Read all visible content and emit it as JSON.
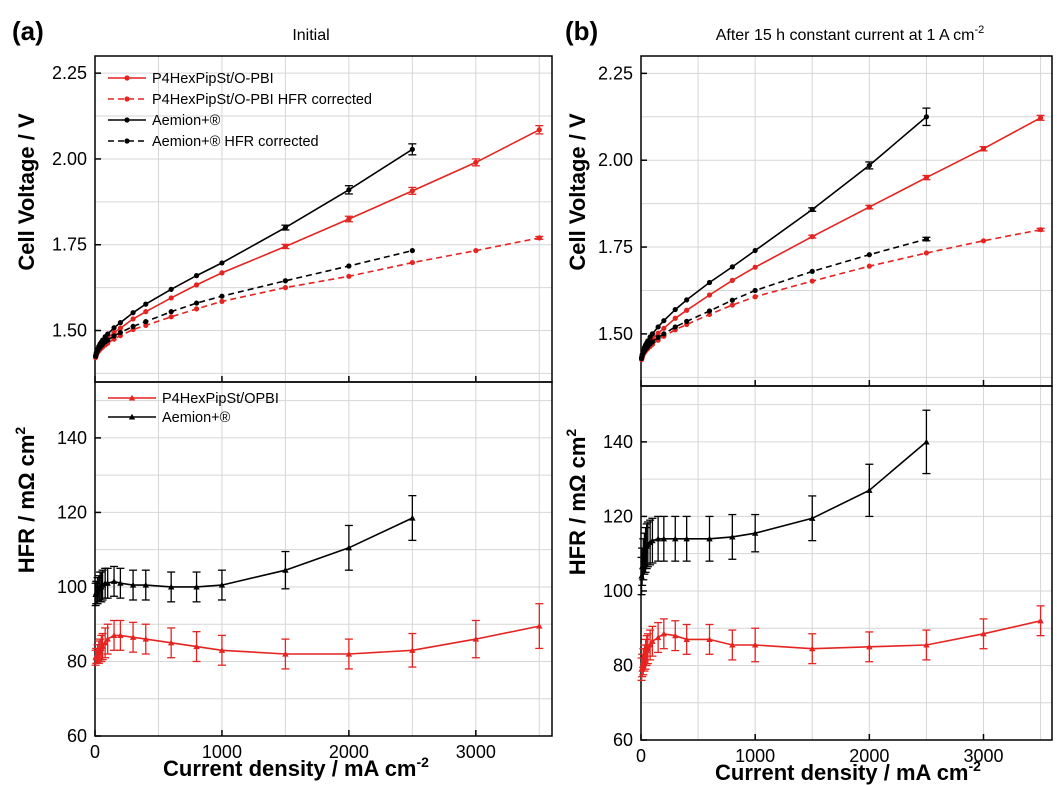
{
  "figure": {
    "panels": [
      {
        "letter": "(a)",
        "title": "Initial",
        "title_sup": ""
      },
      {
        "letter": "(b)",
        "title": "After 15 h constant current at 1 A cm",
        "title_sup": "-2"
      }
    ],
    "xlabel": "Current density / mA cm",
    "xlabel_sup": "-2",
    "voltage_ylabel": "Cell Voltage / V",
    "hfr_ylabel": "HFR / mΩ cm",
    "hfr_ylabel_sup": "2"
  },
  "chart_data": [
    {
      "type": "line",
      "panel": "(a)",
      "title": "Initial",
      "xlabel": "Current density / mA cm-2",
      "ylabel": "Cell Voltage / V",
      "xlim": [
        0,
        3600
      ],
      "ylim": [
        1.35,
        2.3
      ],
      "xticks": [
        "0",
        "1000",
        "2000",
        "3000"
      ],
      "yticks": [
        "1.50",
        "1.75",
        "2.00",
        "2.25"
      ],
      "grid": true,
      "legend_position": "top-left",
      "series": [
        {
          "name": "P4HexPipSt/O-PBI",
          "color": "#e52421",
          "dashed": false,
          "marker": "circle",
          "x": [
            5,
            10,
            20,
            30,
            40,
            50,
            60,
            80,
            100,
            150,
            200,
            300,
            400,
            600,
            800,
            1000,
            1500,
            2000,
            2500,
            3000,
            3500
          ],
          "y": [
            1.422,
            1.43,
            1.44,
            1.447,
            1.452,
            1.457,
            1.462,
            1.471,
            1.478,
            1.494,
            1.507,
            1.534,
            1.555,
            1.595,
            1.633,
            1.668,
            1.745,
            1.825,
            1.907,
            1.99,
            2.085
          ],
          "err": [
            0,
            0,
            0,
            0,
            0,
            0,
            0,
            0,
            0,
            0,
            0,
            0,
            0,
            0,
            0,
            0,
            0.006,
            0.008,
            0.01,
            0.01,
            0.012
          ]
        },
        {
          "name": "P4HexPipSt/O-PBI HFR corrected",
          "color": "#e52421",
          "dashed": true,
          "marker": "circle",
          "x": [
            5,
            10,
            20,
            30,
            40,
            50,
            60,
            80,
            100,
            150,
            200,
            300,
            400,
            600,
            800,
            1000,
            1500,
            2000,
            2500,
            3000,
            3500
          ],
          "y": [
            1.421,
            1.428,
            1.436,
            1.441,
            1.445,
            1.449,
            1.452,
            1.458,
            1.463,
            1.475,
            1.485,
            1.503,
            1.515,
            1.54,
            1.563,
            1.585,
            1.625,
            1.658,
            1.698,
            1.733,
            1.77
          ],
          "err": [
            0,
            0,
            0,
            0,
            0,
            0,
            0,
            0,
            0,
            0,
            0,
            0,
            0,
            0,
            0,
            0,
            0,
            0,
            0,
            0,
            0.004
          ]
        },
        {
          "name": "Aemion+®",
          "color": "#000000",
          "dashed": false,
          "marker": "circle",
          "x": [
            5,
            10,
            20,
            30,
            40,
            50,
            60,
            80,
            100,
            150,
            200,
            300,
            400,
            600,
            800,
            1000,
            1500,
            2000,
            2500
          ],
          "y": [
            1.427,
            1.435,
            1.446,
            1.454,
            1.461,
            1.466,
            1.472,
            1.482,
            1.49,
            1.508,
            1.523,
            1.552,
            1.577,
            1.62,
            1.66,
            1.697,
            1.8,
            1.91,
            2.028
          ],
          "err": [
            0,
            0,
            0,
            0,
            0,
            0,
            0,
            0,
            0,
            0,
            0,
            0,
            0,
            0,
            0,
            0,
            0.007,
            0.012,
            0.016
          ]
        },
        {
          "name": "Aemion+®   HFR corrected",
          "color": "#000000",
          "dashed": true,
          "marker": "circle",
          "x": [
            5,
            10,
            20,
            30,
            40,
            50,
            60,
            80,
            100,
            150,
            200,
            300,
            400,
            600,
            800,
            1000,
            1500,
            2000,
            2500
          ],
          "y": [
            1.425,
            1.432,
            1.441,
            1.447,
            1.452,
            1.456,
            1.46,
            1.467,
            1.472,
            1.484,
            1.494,
            1.512,
            1.526,
            1.555,
            1.58,
            1.6,
            1.645,
            1.688,
            1.733
          ],
          "err": [
            0,
            0,
            0,
            0,
            0,
            0,
            0,
            0,
            0,
            0,
            0,
            0,
            0,
            0,
            0,
            0,
            0,
            0,
            0
          ]
        }
      ]
    },
    {
      "type": "line",
      "panel": "(a)",
      "xlabel": "Current density / mA cm-2",
      "ylabel": "HFR / mΩ cm2",
      "xlim": [
        0,
        3600
      ],
      "ylim": [
        60,
        155
      ],
      "xticks": [
        "0",
        "1000",
        "2000",
        "3000"
      ],
      "yticks": [
        "60",
        "80",
        "100",
        "120",
        "140"
      ],
      "grid": true,
      "legend_position": "top-left",
      "series": [
        {
          "name": "P4HexPipSt/OPBI",
          "color": "#e52421",
          "marker": "triangle",
          "x": [
            5,
            10,
            20,
            30,
            40,
            50,
            60,
            80,
            100,
            150,
            200,
            300,
            400,
            600,
            800,
            1000,
            1500,
            2000,
            2500,
            3000,
            3500
          ],
          "y": [
            81,
            81.5,
            82,
            82.5,
            83,
            83.5,
            84,
            85,
            86,
            87,
            87,
            86.5,
            86,
            85,
            84,
            83,
            82,
            82,
            83,
            86,
            89.5
          ],
          "err": [
            2,
            2,
            2.5,
            3,
            3,
            3.5,
            3.5,
            4,
            4,
            4,
            4,
            4,
            4,
            4,
            4,
            4,
            4,
            4,
            4.5,
            5,
            6
          ]
        },
        {
          "name": "Aemion+®",
          "color": "#000000",
          "marker": "triangle",
          "x": [
            5,
            10,
            20,
            30,
            40,
            50,
            60,
            80,
            100,
            150,
            200,
            300,
            400,
            600,
            800,
            1000,
            1500,
            2000,
            2500
          ],
          "y": [
            98,
            98.5,
            99,
            99.5,
            100,
            100,
            100.5,
            101,
            101,
            101.5,
            101,
            100.5,
            100.5,
            100,
            100,
            100.5,
            104.5,
            110.5,
            118.5
          ],
          "err": [
            3,
            3,
            3.5,
            3.5,
            4,
            4,
            4,
            4,
            4,
            4,
            4,
            4,
            4,
            4,
            4,
            4,
            5,
            6,
            6
          ]
        }
      ]
    },
    {
      "type": "line",
      "panel": "(b)",
      "title": "After 15 h constant current at 1 A cm-2",
      "xlabel": "Current density / mA cm-2",
      "ylabel": "Cell Voltage / V",
      "xlim": [
        0,
        3600
      ],
      "ylim": [
        1.35,
        2.3
      ],
      "xticks": [
        "0",
        "1000",
        "2000",
        "3000"
      ],
      "yticks": [
        "1.50",
        "1.75",
        "2.00",
        "2.25"
      ],
      "grid": true,
      "series": [
        {
          "name": "P4HexPipSt/O-PBI",
          "color": "#e52421",
          "dashed": false,
          "marker": "circle",
          "x": [
            5,
            10,
            20,
            30,
            40,
            50,
            60,
            80,
            100,
            150,
            200,
            300,
            400,
            600,
            800,
            1000,
            1500,
            2000,
            2500,
            3000,
            3500
          ],
          "y": [
            1.428,
            1.435,
            1.446,
            1.454,
            1.46,
            1.465,
            1.47,
            1.478,
            1.486,
            1.502,
            1.516,
            1.545,
            1.568,
            1.612,
            1.654,
            1.692,
            1.78,
            1.865,
            1.95,
            2.033,
            2.122
          ],
          "err": [
            0,
            0,
            0,
            0,
            0,
            0,
            0,
            0,
            0,
            0,
            0,
            0,
            0,
            0,
            0,
            0,
            0.004,
            0.005,
            0.006,
            0.006,
            0.007
          ]
        },
        {
          "name": "P4HexPipSt/O-PBI HFR corrected",
          "color": "#e52421",
          "dashed": true,
          "marker": "circle",
          "x": [
            5,
            10,
            20,
            30,
            40,
            50,
            60,
            80,
            100,
            150,
            200,
            300,
            400,
            600,
            800,
            1000,
            1500,
            2000,
            2500,
            3000,
            3500
          ],
          "y": [
            1.426,
            1.432,
            1.441,
            1.447,
            1.451,
            1.455,
            1.458,
            1.464,
            1.47,
            1.482,
            1.493,
            1.512,
            1.527,
            1.556,
            1.583,
            1.607,
            1.652,
            1.695,
            1.733,
            1.768,
            1.8
          ],
          "err": [
            0,
            0,
            0,
            0,
            0,
            0,
            0,
            0,
            0,
            0,
            0,
            0,
            0,
            0,
            0,
            0,
            0,
            0,
            0,
            0,
            0.004
          ]
        },
        {
          "name": "Aemion+®",
          "color": "#000000",
          "dashed": false,
          "marker": "circle",
          "x": [
            5,
            10,
            20,
            30,
            40,
            50,
            60,
            80,
            100,
            150,
            200,
            300,
            400,
            600,
            800,
            1000,
            1500,
            2000,
            2500
          ],
          "y": [
            1.432,
            1.44,
            1.452,
            1.461,
            1.468,
            1.474,
            1.48,
            1.491,
            1.5,
            1.52,
            1.538,
            1.57,
            1.598,
            1.648,
            1.693,
            1.74,
            1.858,
            1.985,
            2.125
          ],
          "err": [
            0,
            0,
            0,
            0,
            0,
            0,
            0,
            0,
            0,
            0,
            0,
            0,
            0,
            0,
            0,
            0,
            0.005,
            0.01,
            0.025
          ]
        },
        {
          "name": "Aemion+®   HFR corrected",
          "color": "#000000",
          "dashed": true,
          "marker": "circle",
          "x": [
            5,
            10,
            20,
            30,
            40,
            50,
            60,
            80,
            100,
            150,
            200,
            300,
            400,
            600,
            800,
            1000,
            1500,
            2000,
            2500
          ],
          "y": [
            1.429,
            1.436,
            1.445,
            1.451,
            1.456,
            1.46,
            1.464,
            1.471,
            1.477,
            1.49,
            1.5,
            1.52,
            1.536,
            1.566,
            1.597,
            1.625,
            1.68,
            1.728,
            1.773
          ],
          "err": [
            0,
            0,
            0,
            0,
            0,
            0,
            0,
            0,
            0,
            0,
            0,
            0,
            0,
            0,
            0,
            0,
            0,
            0,
            0.005
          ]
        }
      ]
    },
    {
      "type": "line",
      "panel": "(b)",
      "xlabel": "Current density / mA cm-2",
      "ylabel": "HFR / mΩ cm2",
      "xlim": [
        0,
        3600
      ],
      "ylim": [
        60,
        155
      ],
      "xticks": [
        "0",
        "1000",
        "2000",
        "3000"
      ],
      "yticks": [
        "60",
        "80",
        "100",
        "120",
        "140"
      ],
      "grid": true,
      "series": [
        {
          "name": "P4HexPipSt/OPBI",
          "color": "#e52421",
          "marker": "triangle",
          "x": [
            5,
            10,
            20,
            30,
            40,
            50,
            60,
            80,
            100,
            150,
            200,
            300,
            400,
            600,
            800,
            1000,
            1500,
            2000,
            2500,
            3000,
            3500
          ],
          "y": [
            79,
            80,
            81,
            82,
            83,
            84,
            84.5,
            85.5,
            86.5,
            87.5,
            88.5,
            88,
            87,
            87,
            85.5,
            85.5,
            84.5,
            85,
            85.5,
            88.5,
            92
          ],
          "err": [
            3,
            3,
            3.5,
            3.5,
            4,
            4,
            4,
            4,
            4,
            4,
            4,
            4,
            4,
            4,
            4,
            4.5,
            4,
            4,
            4,
            4,
            4
          ]
        },
        {
          "name": "Aemion+®",
          "color": "#000000",
          "marker": "triangle",
          "x": [
            5,
            10,
            20,
            30,
            40,
            50,
            60,
            80,
            100,
            150,
            200,
            300,
            400,
            600,
            800,
            1000,
            1500,
            2000,
            2500
          ],
          "y": [
            104,
            106.5,
            108.5,
            110,
            111,
            112,
            112.5,
            113,
            113.5,
            114,
            114,
            114,
            114,
            114,
            114.5,
            115.5,
            119.5,
            127,
            140
          ],
          "err": [
            5,
            5,
            5.5,
            5.5,
            6,
            6,
            6,
            6,
            6,
            6,
            6,
            6,
            6,
            6,
            6,
            5,
            6,
            7,
            8.5
          ]
        }
      ]
    }
  ]
}
